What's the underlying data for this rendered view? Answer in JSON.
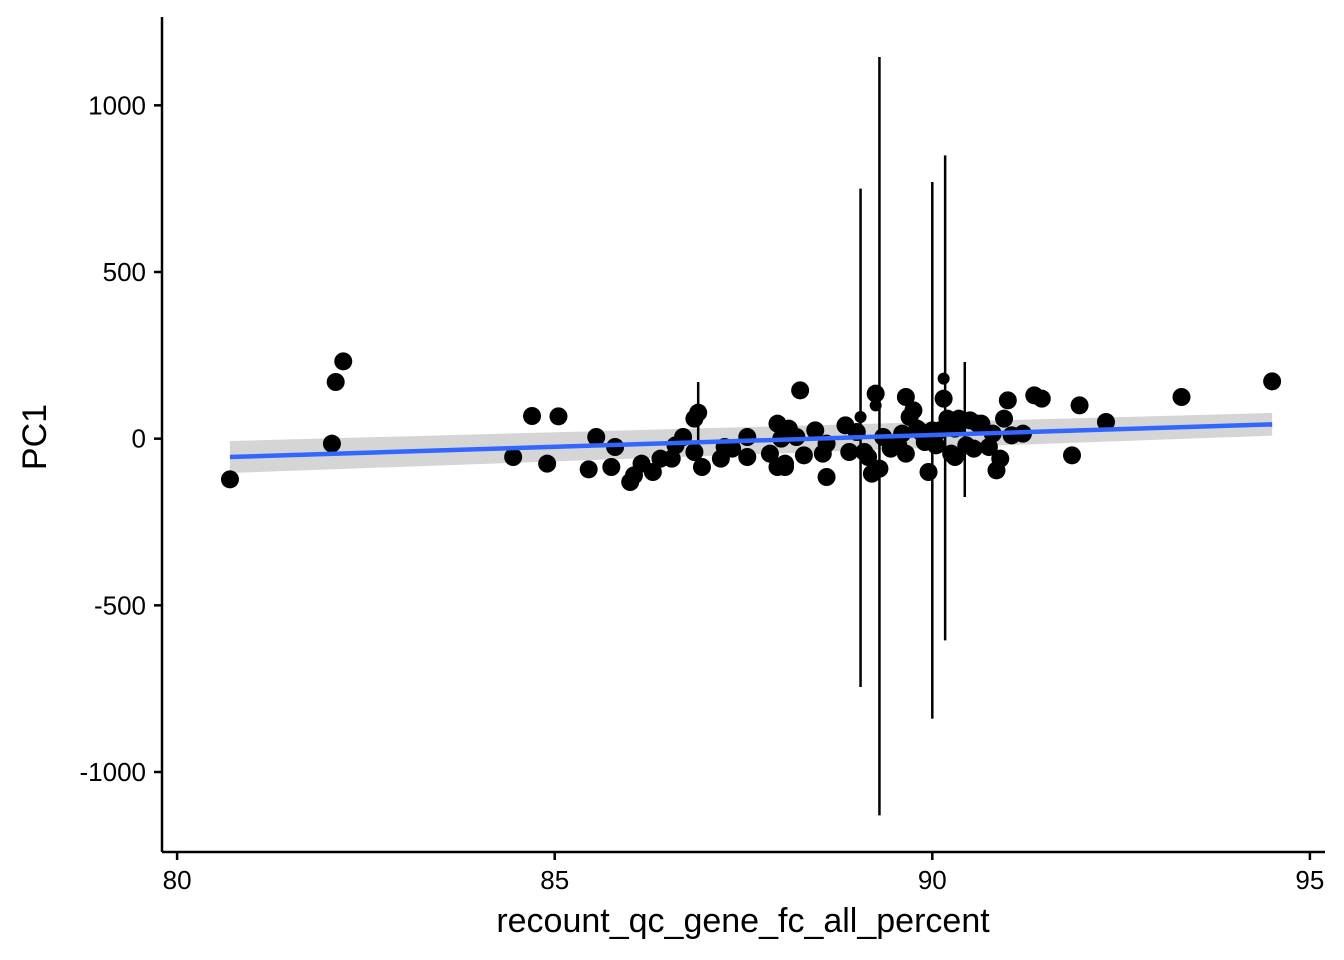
{
  "chart_data": {
    "type": "scatter",
    "title": "",
    "xlabel": "recount_qc_gene_fc_all_percent",
    "ylabel": "PC1",
    "xlim": [
      79.8,
      95.2
    ],
    "ylim": [
      -1240,
      1265
    ],
    "x_ticks": [
      80,
      85,
      90,
      95
    ],
    "x_tick_labels": [
      "80",
      "85",
      "90",
      "95"
    ],
    "y_ticks": [
      1000,
      500,
      0,
      -500,
      -1000
    ],
    "y_tick_labels": [
      "1000",
      "500",
      "0",
      "-500",
      "-1000"
    ],
    "grid": false,
    "legend": "none",
    "colors": {
      "points": "#000000",
      "fit_line": "#3366FF",
      "confidence_band": "#D3D3D3",
      "axis": "#000000"
    },
    "fit": {
      "method": "linear",
      "x_range": [
        80.7,
        94.5
      ],
      "y_start": -55,
      "y_end": 43,
      "ci_upper_start": -7,
      "ci_lower_start": -103,
      "ci_upper_end": 77,
      "ci_lower_end": 9
    },
    "error_bars": [
      {
        "x": 86.9,
        "y": 75,
        "ymin": -20,
        "ymax": 170
      },
      {
        "x": 89.05,
        "y": 0,
        "ymin": -745,
        "ymax": 750
      },
      {
        "x": 89.3,
        "y": 5,
        "ymin": -1130,
        "ymax": 1145
      },
      {
        "x": 90.0,
        "y": -35,
        "ymin": -840,
        "ymax": 770
      },
      {
        "x": 90.17,
        "y": 120,
        "ymin": -605,
        "ymax": 850
      },
      {
        "x": 90.43,
        "y": 30,
        "ymin": -175,
        "ymax": 230
      }
    ],
    "small_points": [
      {
        "x": 89.05,
        "y": 65
      },
      {
        "x": 89.25,
        "y": 100
      },
      {
        "x": 90.15,
        "y": 180
      }
    ],
    "points": [
      {
        "x": 80.7,
        "y": -122
      },
      {
        "x": 82.05,
        "y": -15
      },
      {
        "x": 82.1,
        "y": 170
      },
      {
        "x": 82.2,
        "y": 232
      },
      {
        "x": 84.45,
        "y": -55
      },
      {
        "x": 84.7,
        "y": 68
      },
      {
        "x": 84.9,
        "y": -75
      },
      {
        "x": 85.05,
        "y": 67
      },
      {
        "x": 85.45,
        "y": -92
      },
      {
        "x": 85.55,
        "y": 5
      },
      {
        "x": 85.75,
        "y": -85
      },
      {
        "x": 85.8,
        "y": -25
      },
      {
        "x": 86.0,
        "y": -130
      },
      {
        "x": 86.05,
        "y": -110
      },
      {
        "x": 86.15,
        "y": -75
      },
      {
        "x": 86.3,
        "y": -100
      },
      {
        "x": 86.4,
        "y": -60
      },
      {
        "x": 86.55,
        "y": -60
      },
      {
        "x": 86.6,
        "y": -20
      },
      {
        "x": 86.7,
        "y": 5
      },
      {
        "x": 86.85,
        "y": -40
      },
      {
        "x": 86.85,
        "y": 60
      },
      {
        "x": 86.9,
        "y": 78
      },
      {
        "x": 86.95,
        "y": -85
      },
      {
        "x": 87.2,
        "y": -60
      },
      {
        "x": 87.25,
        "y": -25
      },
      {
        "x": 87.35,
        "y": -30
      },
      {
        "x": 87.55,
        "y": 5
      },
      {
        "x": 87.55,
        "y": -55
      },
      {
        "x": 87.85,
        "y": -45
      },
      {
        "x": 87.95,
        "y": -85
      },
      {
        "x": 87.95,
        "y": 45
      },
      {
        "x": 88.0,
        "y": 0
      },
      {
        "x": 88.05,
        "y": -85
      },
      {
        "x": 88.05,
        "y": -75
      },
      {
        "x": 88.1,
        "y": 30
      },
      {
        "x": 88.2,
        "y": 5
      },
      {
        "x": 88.25,
        "y": 145
      },
      {
        "x": 88.3,
        "y": -50
      },
      {
        "x": 88.45,
        "y": 25
      },
      {
        "x": 88.55,
        "y": -45
      },
      {
        "x": 88.6,
        "y": -15
      },
      {
        "x": 88.6,
        "y": -115
      },
      {
        "x": 88.85,
        "y": 40
      },
      {
        "x": 88.9,
        "y": -40
      },
      {
        "x": 89.0,
        "y": 20
      },
      {
        "x": 89.1,
        "y": -40
      },
      {
        "x": 89.15,
        "y": -55
      },
      {
        "x": 89.2,
        "y": -105
      },
      {
        "x": 89.25,
        "y": 135
      },
      {
        "x": 89.3,
        "y": -90
      },
      {
        "x": 89.35,
        "y": 5
      },
      {
        "x": 89.45,
        "y": -30
      },
      {
        "x": 89.55,
        "y": -20
      },
      {
        "x": 89.6,
        "y": 15
      },
      {
        "x": 89.65,
        "y": 125
      },
      {
        "x": 89.65,
        "y": -45
      },
      {
        "x": 89.7,
        "y": 65
      },
      {
        "x": 89.75,
        "y": 85
      },
      {
        "x": 89.8,
        "y": 30
      },
      {
        "x": 89.85,
        "y": 20
      },
      {
        "x": 89.9,
        "y": -10
      },
      {
        "x": 89.95,
        "y": -100
      },
      {
        "x": 90.0,
        "y": 25
      },
      {
        "x": 90.05,
        "y": -20
      },
      {
        "x": 90.1,
        "y": 25
      },
      {
        "x": 90.15,
        "y": 120
      },
      {
        "x": 90.2,
        "y": 60
      },
      {
        "x": 90.25,
        "y": -45
      },
      {
        "x": 90.3,
        "y": -55
      },
      {
        "x": 90.3,
        "y": 30
      },
      {
        "x": 90.35,
        "y": 60
      },
      {
        "x": 90.4,
        "y": 55
      },
      {
        "x": 90.45,
        "y": -20
      },
      {
        "x": 90.5,
        "y": 55
      },
      {
        "x": 90.55,
        "y": -30
      },
      {
        "x": 90.6,
        "y": 45
      },
      {
        "x": 90.65,
        "y": 45
      },
      {
        "x": 90.75,
        "y": -25
      },
      {
        "x": 90.8,
        "y": 15
      },
      {
        "x": 90.85,
        "y": -95
      },
      {
        "x": 90.9,
        "y": -60
      },
      {
        "x": 90.95,
        "y": 60
      },
      {
        "x": 91.0,
        "y": 115
      },
      {
        "x": 91.05,
        "y": 10
      },
      {
        "x": 91.2,
        "y": 15
      },
      {
        "x": 91.35,
        "y": 130
      },
      {
        "x": 91.45,
        "y": 120
      },
      {
        "x": 91.85,
        "y": -50
      },
      {
        "x": 91.95,
        "y": 100
      },
      {
        "x": 92.3,
        "y": 50
      },
      {
        "x": 93.3,
        "y": 125
      },
      {
        "x": 94.5,
        "y": 172
      }
    ]
  }
}
